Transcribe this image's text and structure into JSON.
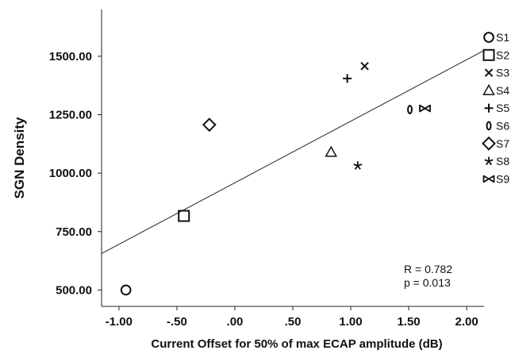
{
  "chart_data": {
    "type": "scatter",
    "xlabel": "Current Offset for 50% of max ECAP amplitude (dB)",
    "ylabel": "SGN Density",
    "xlim": [
      -1.15,
      2.15
    ],
    "ylim": [
      430,
      1700
    ],
    "x_ticks": [
      -1.0,
      -0.5,
      0.0,
      0.5,
      1.0,
      1.5,
      2.0
    ],
    "x_tick_labels": [
      "-1.00",
      "-.50",
      ".00",
      ".50",
      "1.00",
      "1.50",
      "2.00"
    ],
    "y_ticks": [
      500,
      750,
      1000,
      1250,
      1500
    ],
    "y_tick_labels": [
      "500.00",
      "750.00",
      "1000.00",
      "1250.00",
      "1500.00"
    ],
    "legend_position": "right",
    "series": [
      {
        "name": "S1",
        "marker": "circle",
        "x": -0.94,
        "y": 500
      },
      {
        "name": "S2",
        "marker": "square",
        "x": -0.44,
        "y": 817
      },
      {
        "name": "S3",
        "marker": "x",
        "x": 1.12,
        "y": 1458
      },
      {
        "name": "S4",
        "marker": "triangle",
        "x": 0.83,
        "y": 1090
      },
      {
        "name": "S5",
        "marker": "plus",
        "x": 0.97,
        "y": 1405
      },
      {
        "name": "S6",
        "marker": "ellipse",
        "x": 1.51,
        "y": 1272
      },
      {
        "name": "S7",
        "marker": "diamond",
        "x": -0.22,
        "y": 1207
      },
      {
        "name": "S8",
        "marker": "star",
        "x": 1.06,
        "y": 1032
      },
      {
        "name": "S9",
        "marker": "bowtie",
        "x": 1.64,
        "y": 1277
      }
    ],
    "fit_line": {
      "x": [
        -1.15,
        2.15
      ],
      "y": [
        656,
        1525
      ]
    },
    "annotations": [
      "R = 0.782",
      "p = 0.013"
    ]
  }
}
